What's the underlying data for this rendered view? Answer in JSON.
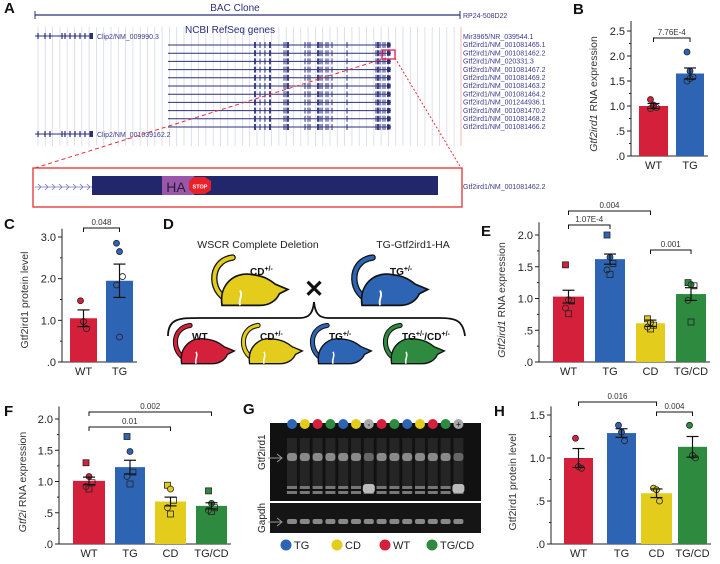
{
  "panel_letters": [
    "A",
    "B",
    "C",
    "D",
    "E",
    "F",
    "G",
    "H"
  ],
  "panel_a": {
    "bac_title": "BAC Clone",
    "bac_name": "RP24-508D22",
    "refseq_title": "NCBI RefSeq genes",
    "clip2_top": "Clip2/NM_009990.3",
    "clip2_bottom": "Clip2/NM_001039162.2",
    "transcripts": [
      "Mir3965/NR_039544.1",
      "Gtf2ird1/NM_001081465.1",
      "Gtf2ird1/NM_001081462.2",
      "Gtf2ird1/NM_020331.3",
      "Gtf2ird1/NM_001081467.2",
      "Gtf2ird1/NM_001081469.2",
      "Gtf2ird1/NM_001081463.2",
      "Gtf2ird1/NM_001081464.2",
      "Gtf2ird1/NM_001244936.1",
      "Gtf2ird1/NM_001081470.2",
      "Gtf2ird1/NM_001081468.2",
      "Gtf2ird1/NM_001081466.2"
    ],
    "zoom_tag": "HA",
    "zoom_stop": "STOP",
    "zoom_label": "Gtf2ird1/NM_001081462.2"
  },
  "panel_d": {
    "left_title": "WSCR Complete Deletion",
    "right_title": "TG-Gtf2ird1-HA",
    "cross": "✕",
    "parents": [
      {
        "label": "CD",
        "sup": "+/-",
        "color": "#e3cc1c"
      },
      {
        "label": "TG",
        "sup": "+/-",
        "color": "#2e64b4"
      }
    ],
    "offspring": [
      {
        "label": "WT",
        "sup": "",
        "color": "#d5203b"
      },
      {
        "label": "CD",
        "sup": "+/-",
        "color": "#e3cc1c"
      },
      {
        "label": "TG",
        "sup": "+/-",
        "color": "#2e64b4"
      },
      {
        "label": "TG",
        "sup": "+/-",
        "label2": "/CD",
        "sup2": "+/-",
        "color": "#2e8a3e"
      }
    ]
  },
  "panel_g": {
    "top_label": "Gtf2ird1",
    "bottom_label": "Gapdh",
    "lanes": [
      "TG",
      "CD",
      "WT",
      "TG/CD",
      "TG",
      "CD",
      "-",
      "WT",
      "TG/CD",
      "TG",
      "CD",
      "WT",
      "TG/CD",
      "+"
    ],
    "neg_mark": "-",
    "pos_mark": "+",
    "legend": [
      {
        "label": "TG",
        "color": "#2e64b4"
      },
      {
        "label": "CD",
        "color": "#e3cc1c"
      },
      {
        "label": "WT",
        "color": "#d5203b"
      },
      {
        "label": "TG/CD",
        "color": "#2e8a3e"
      }
    ]
  },
  "colors": {
    "WT": "#d5203b",
    "TG": "#2e64b4",
    "CD": "#e3cc1c",
    "TG/CD": "#2e8a3e",
    "-": "#a8a8a8",
    "+": "#a8a8a8"
  },
  "chart_data": [
    {
      "id": "B",
      "type": "bar",
      "ylabel_italic": "Gtf2ird1",
      "ylabel_rest": " RNA expression",
      "categories": [
        "WT",
        "TG"
      ],
      "values": [
        1.0,
        1.65
      ],
      "errors": [
        0.05,
        0.11
      ],
      "ylim": [
        0,
        2.7
      ],
      "ticks": [
        0,
        0.5,
        1.0,
        1.5,
        2.0,
        2.5
      ],
      "tick_labels": [
        ".0",
        ".5",
        "1.0",
        "1.5",
        "2.0",
        "2.5"
      ],
      "points": [
        [
          1.13,
          1.02,
          0.97,
          0.95,
          1.0
        ],
        [
          2.08,
          1.7,
          1.58,
          1.5,
          1.55
        ]
      ],
      "significance": [
        {
          "from": 0,
          "to": 1,
          "label": "7.76E-4"
        }
      ]
    },
    {
      "id": "C",
      "type": "bar",
      "ylabel_italic": "",
      "ylabel_rest": "Gtf2ird1 protein level",
      "categories": [
        "WT",
        "TG"
      ],
      "values": [
        1.05,
        1.95
      ],
      "errors": [
        0.2,
        0.4
      ],
      "ylim": [
        0,
        3.2
      ],
      "ticks": [
        0,
        1,
        2,
        3
      ],
      "tick_labels": [
        ".0",
        "1.0",
        "2.0",
        "3.0"
      ],
      "points": [
        [
          1.47,
          0.97,
          0.8
        ],
        [
          2.85,
          2.65,
          2.05,
          1.85,
          0.6
        ]
      ],
      "significance": [
        {
          "from": 0,
          "to": 1,
          "label": "0.048"
        }
      ]
    },
    {
      "id": "E",
      "type": "bar",
      "ylabel_italic": "Gtf2ird1",
      "ylabel_rest": " RNA expression",
      "categories": [
        "WT",
        "TG",
        "CD",
        "TG/CD"
      ],
      "values": [
        1.03,
        1.62,
        0.61,
        1.07
      ],
      "errors": [
        0.1,
        0.08,
        0.05,
        0.1
      ],
      "ylim": [
        0,
        2.2
      ],
      "ticks": [
        0,
        0.5,
        1.0,
        1.5,
        2.0
      ],
      "tick_labels": [
        ".0",
        ".5",
        "1.0",
        "1.5",
        "2.0"
      ],
      "points": [
        [
          1.53,
          0.98,
          0.96,
          0.85,
          0.76
        ],
        [
          2.0,
          1.65,
          1.55,
          1.45,
          1.38
        ],
        [
          0.68,
          0.62,
          0.58,
          0.55,
          0.52
        ],
        [
          1.25,
          1.22,
          1.2,
          0.97,
          0.63
        ]
      ],
      "significance": [
        {
          "from": 0,
          "to": 1,
          "label": "1.07E-4"
        },
        {
          "from": 0,
          "to": 2,
          "label": "0.004"
        },
        {
          "from": 2,
          "to": 3,
          "label": "0.001"
        }
      ]
    },
    {
      "id": "F",
      "type": "bar",
      "ylabel_italic": "Gtf2i",
      "ylabel_rest": " RNA expression",
      "categories": [
        "WT",
        "TG",
        "CD",
        "TG/CD"
      ],
      "values": [
        1.01,
        1.23,
        0.68,
        0.61
      ],
      "errors": [
        0.06,
        0.11,
        0.07,
        0.05
      ],
      "ylim": [
        0,
        2.2
      ],
      "ticks": [
        0,
        0.5,
        1.0,
        1.5,
        2.0
      ],
      "tick_labels": [
        ".0",
        ".5",
        "1.0",
        "1.5",
        "2.0"
      ],
      "points": [
        [
          1.3,
          1.08,
          0.98,
          0.92,
          0.88
        ],
        [
          1.72,
          1.48,
          1.15,
          1.08,
          0.96
        ],
        [
          0.94,
          0.88,
          0.7,
          0.58,
          0.48
        ],
        [
          0.85,
          0.65,
          0.58,
          0.54,
          0.52
        ]
      ],
      "significance": [
        {
          "from": 0,
          "to": 2,
          "label": "0.01"
        },
        {
          "from": 0,
          "to": 3,
          "label": "0.002"
        }
      ]
    },
    {
      "id": "H",
      "type": "bar",
      "ylabel_italic": "",
      "ylabel_rest": "Gtf2ird1 protein level",
      "categories": [
        "WT",
        "TG",
        "CD",
        "TG/CD"
      ],
      "values": [
        1.0,
        1.29,
        0.59,
        1.13
      ],
      "errors": [
        0.11,
        0.05,
        0.05,
        0.12
      ],
      "ylim": [
        0,
        1.6
      ],
      "ticks": [
        0,
        0.5,
        1.0,
        1.5
      ],
      "tick_labels": [
        ".0",
        ".5",
        "1.0",
        "1.5"
      ],
      "points": [
        [
          1.23,
          0.9,
          0.88
        ],
        [
          1.38,
          1.3,
          1.2
        ],
        [
          0.65,
          0.63,
          0.5
        ],
        [
          1.38,
          1.03,
          1.0
        ]
      ],
      "significance": [
        {
          "from": 0,
          "to": 2,
          "label": "0.016"
        },
        {
          "from": 2,
          "to": 3,
          "label": "0.004"
        }
      ]
    }
  ]
}
